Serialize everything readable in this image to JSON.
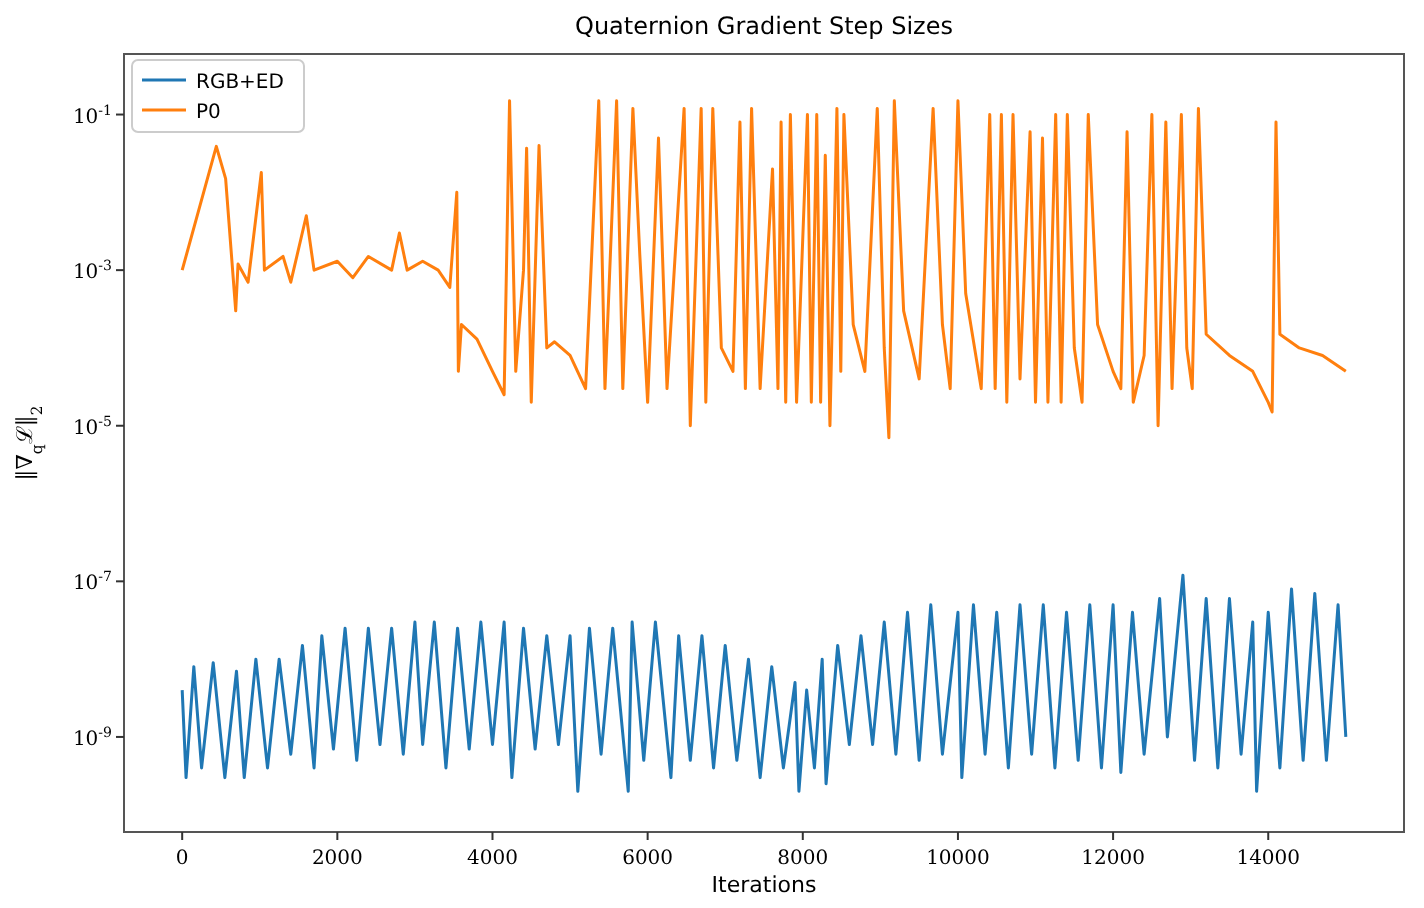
{
  "chart_data": {
    "type": "line",
    "title": "Quaternion Gradient Step Sizes",
    "xlabel": "Iterations",
    "ylabel": "‖∇$_{q}$ℒ‖$_{2}$",
    "log": "y",
    "legend": "top left",
    "grid": false,
    "xlim": [
      -750,
      15750
    ],
    "xticks": [
      0,
      2000,
      4000,
      6000,
      8000,
      10000,
      12000,
      14000
    ],
    "ylim": [
      6e-11,
      0.6
    ],
    "yticks": [
      {
        "value": 1e-09,
        "label": "10$^{-9}$"
      },
      {
        "value": 1e-07,
        "label": "10$^{-7}$"
      },
      {
        "value": 1e-05,
        "label": "10$^{-5}$"
      },
      {
        "value": 0.001,
        "label": "10$^{-3}$"
      },
      {
        "value": 0.1,
        "label": "10$^{-1}$"
      }
    ],
    "series": [
      {
        "name": "RGB+ED",
        "color": "#1f77b4",
        "x": [
          0,
          50,
          150,
          250,
          400,
          550,
          700,
          800,
          950,
          1100,
          1250,
          1400,
          1550,
          1700,
          1800,
          1950,
          2100,
          2250,
          2400,
          2550,
          2700,
          2850,
          3000,
          3100,
          3250,
          3400,
          3550,
          3700,
          3850,
          4000,
          4150,
          4250,
          4400,
          4550,
          4700,
          4850,
          5000,
          5100,
          5250,
          5400,
          5550,
          5750,
          5800,
          5950,
          6100,
          6300,
          6400,
          6550,
          6700,
          6850,
          7000,
          7150,
          7300,
          7450,
          7600,
          7750,
          7900,
          7950,
          8050,
          8150,
          8250,
          8300,
          8450,
          8600,
          8750,
          8900,
          9050,
          9200,
          9350,
          9500,
          9650,
          9800,
          10000,
          10050,
          10200,
          10350,
          10500,
          10650,
          10800,
          10950,
          11100,
          11250,
          11400,
          11550,
          11700,
          11850,
          12000,
          12100,
          12250,
          12400,
          12600,
          12700,
          12900,
          13050,
          13200,
          13350,
          13500,
          13650,
          13800,
          13850,
          14000,
          14150,
          14300,
          14450,
          14600,
          14750,
          14900,
          15000
        ],
        "values": [
          4e-09,
          3e-10,
          8e-09,
          4e-10,
          9e-09,
          3e-10,
          7e-09,
          3e-10,
          1e-08,
          4e-10,
          1e-08,
          6e-10,
          1.5e-08,
          4e-10,
          2e-08,
          7e-10,
          2.5e-08,
          5e-10,
          2.5e-08,
          8e-10,
          2.5e-08,
          6e-10,
          3e-08,
          8e-10,
          3e-08,
          4e-10,
          2.5e-08,
          7e-10,
          3e-08,
          8e-10,
          3e-08,
          3e-10,
          2.5e-08,
          7e-10,
          2e-08,
          8e-10,
          2e-08,
          2e-10,
          2.5e-08,
          6e-10,
          2.5e-08,
          2e-10,
          3e-08,
          5e-10,
          3e-08,
          3e-10,
          2e-08,
          5e-10,
          2e-08,
          4e-10,
          1.5e-08,
          5e-10,
          1e-08,
          3e-10,
          8e-09,
          4e-10,
          5e-09,
          2e-10,
          4e-09,
          4e-10,
          1e-08,
          2.5e-10,
          1.5e-08,
          8e-10,
          2e-08,
          8e-10,
          3e-08,
          6e-10,
          4e-08,
          5e-10,
          5e-08,
          6e-10,
          4e-08,
          3e-10,
          5e-08,
          6e-10,
          4e-08,
          4e-10,
          5e-08,
          6e-10,
          5e-08,
          4e-10,
          4e-08,
          5e-10,
          5e-08,
          4e-10,
          5e-08,
          3.5e-10,
          4e-08,
          6e-10,
          6e-08,
          1e-09,
          1.2e-07,
          5e-10,
          6e-08,
          4e-10,
          6e-08,
          6e-10,
          3e-08,
          2e-10,
          4e-08,
          4e-10,
          8e-08,
          5e-10,
          7e-08,
          5e-10,
          5e-08,
          1e-09
        ]
      },
      {
        "name": "P0",
        "color": "#ff7f0e",
        "x": [
          0,
          440,
          560,
          690,
          720,
          850,
          1020,
          1060,
          1300,
          1400,
          1600,
          1700,
          2000,
          2200,
          2400,
          2700,
          2800,
          2900,
          3100,
          3300,
          3450,
          3540,
          3560,
          3600,
          3800,
          4000,
          4150,
          4220,
          4300,
          4400,
          4440,
          4500,
          4600,
          4700,
          4800,
          5000,
          5200,
          5370,
          5450,
          5600,
          5680,
          5810,
          5900,
          6000,
          6140,
          6250,
          6470,
          6550,
          6690,
          6750,
          6840,
          6950,
          7100,
          7190,
          7260,
          7340,
          7450,
          7610,
          7680,
          7720,
          7780,
          7840,
          7920,
          8060,
          8110,
          8180,
          8230,
          8290,
          8350,
          8440,
          8490,
          8530,
          8650,
          8800,
          8960,
          9050,
          9110,
          9180,
          9300,
          9500,
          9680,
          9800,
          9900,
          10000,
          10100,
          10300,
          10410,
          10480,
          10560,
          10630,
          10710,
          10800,
          10930,
          11000,
          11090,
          11160,
          11260,
          11330,
          11410,
          11500,
          11600,
          11680,
          11800,
          12000,
          12100,
          12180,
          12260,
          12400,
          12500,
          12580,
          12680,
          12760,
          12880,
          12950,
          13020,
          13100,
          13200,
          13500,
          13800,
          14000,
          14050,
          14100,
          14150,
          14400,
          14700,
          15000
        ],
        "values": [
          0.001,
          0.039,
          0.015,
          0.0003,
          0.0012,
          0.0007,
          0.018,
          0.001,
          0.0015,
          0.0007,
          0.005,
          0.001,
          0.0013,
          0.0008,
          0.0015,
          0.001,
          0.003,
          0.001,
          0.0013,
          0.001,
          0.0006,
          0.01,
          5e-05,
          0.0002,
          0.00013,
          5e-05,
          2.5e-05,
          0.15,
          5e-05,
          0.001,
          0.037,
          2e-05,
          0.04,
          0.0001,
          0.00012,
          8e-05,
          3e-05,
          0.15,
          3e-05,
          0.15,
          3e-05,
          0.12,
          0.0015,
          2e-05,
          0.05,
          3e-05,
          0.12,
          1e-05,
          0.12,
          2e-05,
          0.12,
          0.0001,
          5e-05,
          0.08,
          3e-05,
          0.12,
          3e-05,
          0.02,
          3e-05,
          0.08,
          2e-05,
          0.1,
          2e-05,
          0.1,
          2e-05,
          0.1,
          2e-05,
          0.03,
          1e-05,
          0.12,
          5e-05,
          0.1,
          0.0002,
          5e-05,
          0.12,
          0.0001,
          7e-06,
          0.15,
          0.0003,
          4e-05,
          0.12,
          0.0002,
          3e-05,
          0.15,
          0.0005,
          3e-05,
          0.1,
          3e-05,
          0.1,
          2e-05,
          0.1,
          4e-05,
          0.06,
          2e-05,
          0.05,
          2e-05,
          0.1,
          2e-05,
          0.1,
          0.0001,
          2e-05,
          0.1,
          0.0002,
          5e-05,
          3e-05,
          0.06,
          2e-05,
          8e-05,
          0.1,
          1e-05,
          0.08,
          3e-05,
          0.1,
          0.0001,
          3e-05,
          0.12,
          0.00015,
          8e-05,
          5e-05,
          2e-05,
          1.5e-05,
          0.08,
          0.00015,
          0.0001,
          8e-05,
          5e-05
        ]
      }
    ]
  }
}
